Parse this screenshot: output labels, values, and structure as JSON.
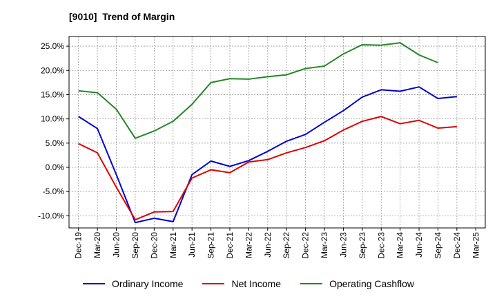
{
  "chart_data": {
    "type": "line",
    "title": "[9010]  Trend of Margin",
    "xlabel": "",
    "ylabel": "",
    "x": [
      "Dec-19",
      "Mar-20",
      "Jun-20",
      "Sep-20",
      "Dec-20",
      "Mar-21",
      "Jun-21",
      "Sep-21",
      "Dec-21",
      "Mar-22",
      "Jun-22",
      "Sep-22",
      "Dec-22",
      "Mar-23",
      "Jun-23",
      "Sep-23",
      "Dec-23",
      "Mar-24",
      "Jun-24",
      "Sep-24",
      "Dec-24",
      "Mar-25"
    ],
    "ylim": [
      -12.5,
      27.0
    ],
    "yticks": [
      -10,
      -5,
      0,
      5,
      10,
      15,
      20,
      25
    ],
    "ytick_labels": [
      "-10.0%",
      "-5.0%",
      "0.0%",
      "5.0%",
      "10.0%",
      "15.0%",
      "20.0%",
      "25.0%"
    ],
    "grid": true,
    "legend_position": "bottom-center",
    "series": [
      {
        "name": "Ordinary Income",
        "color": "#0000cc",
        "values": [
          10.5,
          8.0,
          -1.5,
          -11.4,
          -10.5,
          -11.2,
          -1.5,
          1.3,
          0.2,
          1.4,
          3.3,
          5.4,
          6.8,
          9.3,
          11.7,
          14.5,
          16.0,
          15.7,
          16.6,
          14.2,
          14.6,
          null
        ]
      },
      {
        "name": "Net Income",
        "color": "#dd0000",
        "values": [
          4.9,
          3.0,
          -4.1,
          -10.8,
          -9.2,
          -9.1,
          -2.2,
          -0.5,
          -1.1,
          1.1,
          1.6,
          3.0,
          4.1,
          5.5,
          7.7,
          9.5,
          10.5,
          9.0,
          9.7,
          8.1,
          8.4,
          null
        ]
      },
      {
        "name": "Operating Cashflow",
        "color": "#228822",
        "values": [
          15.8,
          15.4,
          12.0,
          6.0,
          7.5,
          9.5,
          13.0,
          17.5,
          18.3,
          18.2,
          18.7,
          19.1,
          20.4,
          20.9,
          23.4,
          25.3,
          25.2,
          25.7,
          23.2,
          21.6,
          null,
          null
        ]
      }
    ]
  }
}
